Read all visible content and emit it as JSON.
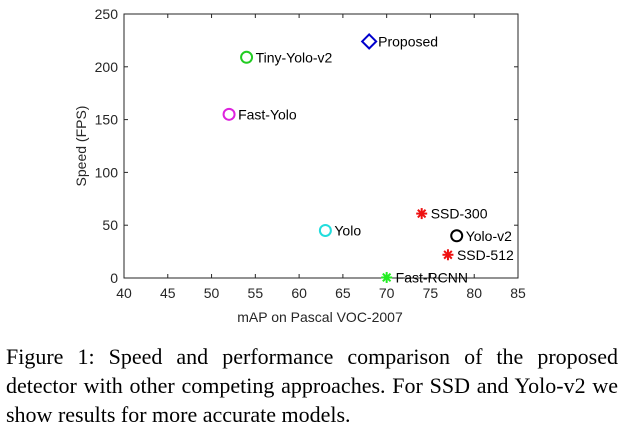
{
  "chart_data": {
    "type": "scatter",
    "xlabel": "mAP on Pascal VOC-2007",
    "ylabel": "Speed (FPS)",
    "xlim": [
      40,
      85
    ],
    "ylim": [
      0,
      250
    ],
    "xticks": [
      40,
      45,
      50,
      55,
      60,
      65,
      70,
      75,
      80,
      85
    ],
    "yticks": [
      0,
      50,
      100,
      150,
      200,
      250
    ],
    "grid": false,
    "legend": "none",
    "points": [
      {
        "label": "Proposed",
        "x": 68,
        "y": 224,
        "marker": "diamond",
        "color": "#0000cc"
      },
      {
        "label": "Tiny-Yolo-v2",
        "x": 54,
        "y": 209,
        "marker": "circle",
        "color": "#22cc22"
      },
      {
        "label": "Fast-Yolo",
        "x": 52,
        "y": 155,
        "marker": "circle",
        "color": "#dd22dd"
      },
      {
        "label": "Yolo",
        "x": 63,
        "y": 45,
        "marker": "circle",
        "color": "#22dddd"
      },
      {
        "label": "SSD-300",
        "x": 74,
        "y": 61,
        "marker": "asterisk",
        "color": "#ee1111"
      },
      {
        "label": "Yolo-v2",
        "x": 78,
        "y": 40,
        "marker": "circle",
        "color": "#000000"
      },
      {
        "label": "SSD-512",
        "x": 77,
        "y": 22,
        "marker": "asterisk",
        "color": "#ee1111"
      },
      {
        "label": "Fast-RCNN",
        "x": 70,
        "y": 0.5,
        "marker": "asterisk",
        "color": "#22ee22"
      }
    ]
  },
  "caption": "Figure 1: Speed and performance comparison of the proposed detector with other competing approaches. For SSD and Yolo-v2 we show results for more accurate models."
}
